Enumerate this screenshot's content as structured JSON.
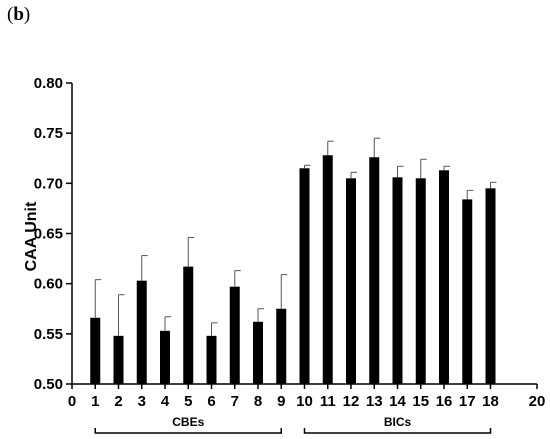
{
  "panel_label": {
    "open": "(",
    "letter": "b",
    "close": ")"
  },
  "chart_data": {
    "type": "bar",
    "title": "",
    "xlabel": "",
    "ylabel": "CAA Unit",
    "ylim": [
      0.5,
      0.8
    ],
    "xlim": [
      0,
      20
    ],
    "yticks": [
      "0.50",
      "0.55",
      "0.60",
      "0.65",
      "0.70",
      "0.75",
      "0.80"
    ],
    "xticks": [
      "0",
      "1",
      "2",
      "3",
      "4",
      "5",
      "6",
      "7",
      "8",
      "9",
      "10",
      "11",
      "12",
      "13",
      "14",
      "15",
      "16",
      "17",
      "18",
      "20"
    ],
    "x": [
      1,
      2,
      3,
      4,
      5,
      6,
      7,
      8,
      9,
      10,
      11,
      12,
      13,
      14,
      15,
      16,
      17,
      18
    ],
    "values": [
      0.566,
      0.548,
      0.603,
      0.553,
      0.617,
      0.548,
      0.597,
      0.562,
      0.575,
      0.715,
      0.728,
      0.705,
      0.726,
      0.706,
      0.705,
      0.713,
      0.684,
      0.695
    ],
    "errors": [
      0.038,
      0.041,
      0.025,
      0.014,
      0.029,
      0.013,
      0.016,
      0.013,
      0.034,
      0.003,
      0.014,
      0.006,
      0.019,
      0.011,
      0.019,
      0.004,
      0.009,
      0.006
    ],
    "groups": [
      {
        "label": "CBEs",
        "from": 1,
        "to": 9
      },
      {
        "label": "BICs",
        "from": 10,
        "to": 18
      }
    ],
    "bar_color": "#000000",
    "grid": false,
    "legend": "none"
  }
}
